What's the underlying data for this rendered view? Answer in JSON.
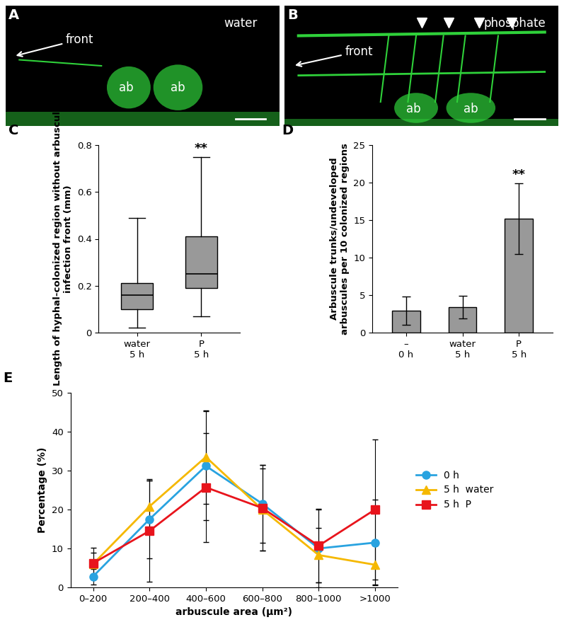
{
  "chart_data": [
    {
      "type": "image",
      "label": "A",
      "texts": [
        "water",
        "front",
        "ab",
        "ab"
      ]
    },
    {
      "type": "image",
      "label": "B",
      "texts": [
        "phosphate",
        "front",
        "ab",
        "ab"
      ]
    },
    {
      "type": "box",
      "label": "C",
      "categories": [
        "water\n5 h",
        "P\n5 h"
      ],
      "stats": [
        {
          "whislo": 0.02,
          "q1": 0.1,
          "med": 0.16,
          "q3": 0.21,
          "whishi": 0.49
        },
        {
          "whislo": 0.07,
          "q1": 0.19,
          "med": 0.25,
          "q3": 0.41,
          "whishi": 0.75
        }
      ],
      "color": "#999999",
      "y_label": "Length of hyphal-colonized region without arbuscule in\ninfection front (mm)",
      "ylim": [
        0,
        0.8
      ],
      "yticks": [
        0,
        0.2,
        0.4,
        0.6,
        0.8
      ],
      "annotations": [
        {
          "category": "P\n5 h",
          "text": "**"
        }
      ]
    },
    {
      "type": "bar",
      "label": "D",
      "categories": [
        "–\n0 h",
        "water\n5 h",
        "P\n5 h"
      ],
      "values": [
        2.9,
        3.4,
        15.2
      ],
      "errors": [
        1.9,
        1.5,
        4.7
      ],
      "color": "#999999",
      "y_label": "Arbuscule trunks/undeveloped\narbuscules per 10 colonized regions",
      "ylim": [
        0,
        25
      ],
      "yticks": [
        0,
        5,
        10,
        15,
        20,
        25
      ],
      "annotations": [
        {
          "category": "P\n5 h",
          "text": "**"
        }
      ]
    },
    {
      "type": "line",
      "label": "E",
      "categories": [
        "0–200",
        "200–400",
        "400–600",
        "600–800",
        "800–1000",
        ">1000"
      ],
      "x_label": "arbuscule area (μm²)",
      "y_label": "Percentage (%)",
      "ylim": [
        0,
        50
      ],
      "yticks": [
        0,
        10,
        20,
        30,
        40,
        50
      ],
      "legend": "right",
      "series": [
        {
          "name": "0 h",
          "color": "#29a3e0",
          "marker": "circle",
          "values": [
            2.8,
            17.5,
            31.2,
            21.5,
            10.0,
            11.5
          ],
          "errors": [
            2.0,
            10.0,
            14.0,
            10.0,
            10.0,
            11.0
          ]
        },
        {
          "name": "5 h  water",
          "color": "#f5b800",
          "marker": "triangle",
          "values": [
            6.0,
            20.8,
            33.5,
            20.0,
            8.3,
            5.8
          ],
          "errors": [
            3.0,
            7.0,
            12.0,
            10.5,
            7.0,
            5.0
          ]
        },
        {
          "name": "5 h  P",
          "color": "#e8141c",
          "marker": "square",
          "values": [
            6.2,
            14.5,
            25.7,
            20.4,
            10.7,
            20.0
          ],
          "errors": [
            4.0,
            13.0,
            14.0,
            11.0,
            9.5,
            18.0
          ]
        }
      ]
    }
  ]
}
